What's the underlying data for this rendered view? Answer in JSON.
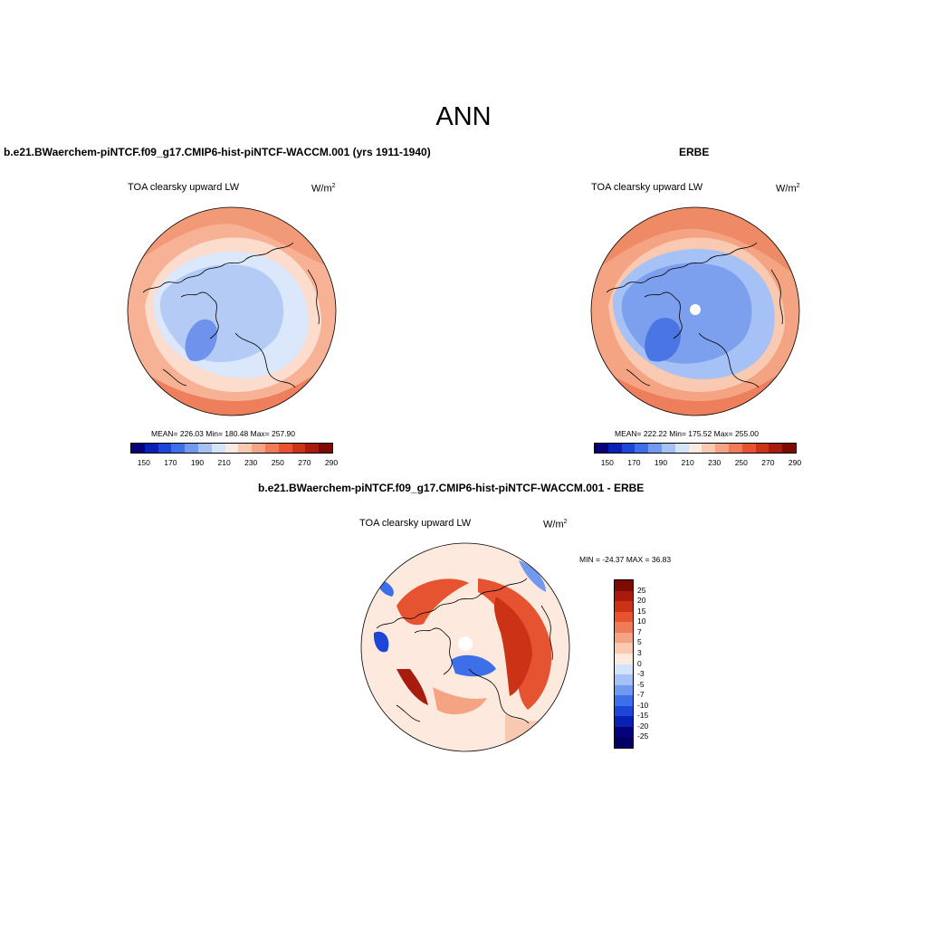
{
  "main_title": "ANN",
  "panels": [
    {
      "header": "b.e21.BWaerchem-piNTCF.f09_g17.CMIP6-hist-piNTCF-WACCM.001 (yrs 1911-1940)",
      "variable": "TOA clearsky upward LW",
      "units_base": "W/m",
      "units_exp": "2",
      "stats": "MEAN= 226.03  Min= 180.48  Max= 257.90",
      "colorbar_labels": [
        "150",
        "170",
        "190",
        "210",
        "230",
        "250",
        "270",
        "290"
      ]
    },
    {
      "header": "ERBE",
      "variable": "TOA clearsky upward LW",
      "units_base": "W/m",
      "units_exp": "2",
      "stats": "MEAN= 222.22  Min= 175.52  Max= 255.00",
      "colorbar_labels": [
        "150",
        "170",
        "190",
        "210",
        "230",
        "250",
        "270",
        "290"
      ]
    },
    {
      "header": "b.e21.BWaerchem-piNTCF.f09_g17.CMIP6-hist-piNTCF-WACCM.001 - ERBE",
      "variable": "TOA clearsky upward LW",
      "units_base": "W/m",
      "units_exp": "2",
      "stats": "MIN = -24.37 MAX =  36.83",
      "colorbar_labels": [
        "25",
        "20",
        "15",
        "10",
        "7",
        "5",
        "3",
        "0",
        "-3",
        "-5",
        "-7",
        "-10",
        "-15",
        "-20",
        "-25"
      ]
    }
  ],
  "colors": {
    "abs_palette": [
      "#08007a",
      "#0a1fb4",
      "#1d46d8",
      "#3d6fe8",
      "#7199f0",
      "#a5c1f5",
      "#d3e3f9",
      "#fde9dd",
      "#f9c9b1",
      "#f4a483",
      "#ef7b58",
      "#e65330",
      "#cc3316",
      "#a71c0c",
      "#7d0b03"
    ],
    "diff_palette": [
      "#7d0b03",
      "#a71c0c",
      "#cc3316",
      "#e65330",
      "#ef7b58",
      "#f4a483",
      "#f9c9b1",
      "#fde9dd",
      "#d3e3f9",
      "#a5c1f5",
      "#7199f0",
      "#3d6fe8",
      "#1d46d8",
      "#0a1fb4",
      "#08007a",
      "#020062"
    ]
  }
}
